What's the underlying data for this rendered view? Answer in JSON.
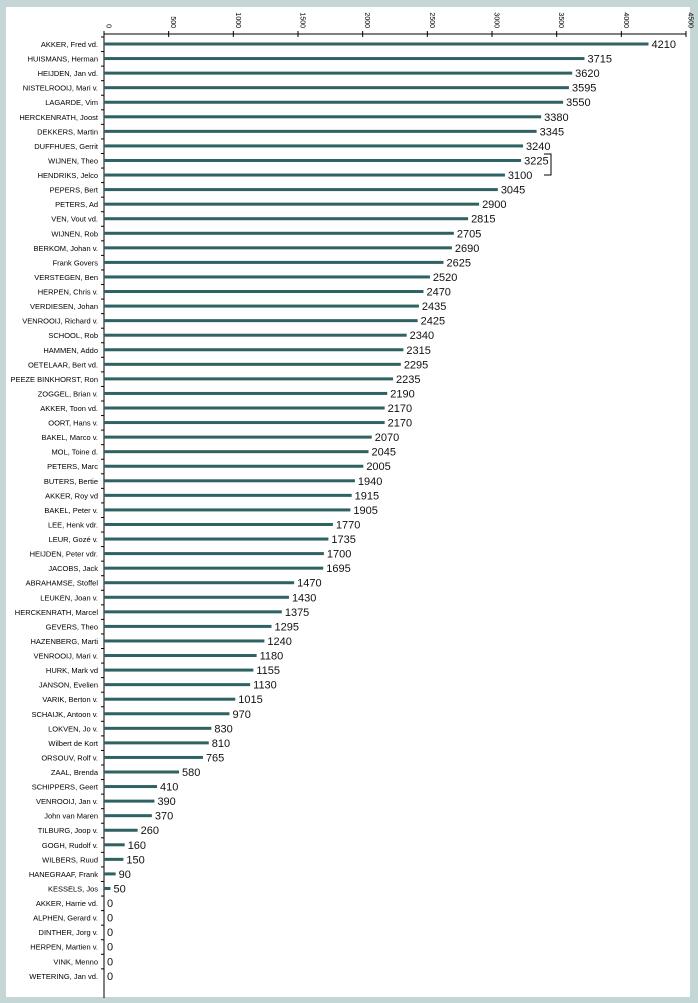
{
  "chart_data": {
    "type": "bar",
    "orientation": "horizontal",
    "title": "",
    "xlabel": "",
    "ylabel": "",
    "xlim": [
      0,
      4500
    ],
    "xticks": [
      0,
      500,
      1000,
      1500,
      2000,
      2500,
      3000,
      3500,
      4000,
      4500
    ],
    "bar_color": "#2f6262",
    "categories": [
      "AKKER, Fred vd.",
      "HUISMANS, Herman",
      "HEIJDEN, Jan vd.",
      "NISTELROOIJ, Mari v.",
      "LAGARDE, Vim",
      "HERCKENRATH, Joost",
      "DEKKERS, Martin",
      "DUFFHUES, Gerrit",
      "WIJNEN, Theo",
      "HENDRIKS, Jelco",
      "PEPERS, Bert",
      "PETERS, Ad",
      "VEN, Vout vd.",
      "WIJNEN, Rob",
      "BERKOM, Johan v.",
      "Frank Govers",
      "VERSTEGEN, Ben",
      "HERPEN, Chris v.",
      "VERDIESEN, Johan",
      "VENROOIJ, Richard v.",
      "SCHOOL, Rob",
      "HAMMEN, Addo",
      "OETELAAR, Bert vd.",
      "PEEZE BINKHORST, Ron",
      "ZOGGEL, Brian v.",
      "AKKER, Toon vd.",
      "OORT, Hans v.",
      "BAKEL, Marco v.",
      "MOL, Toine d.",
      "PETERS, Marc",
      "BUTERS, Bertie",
      "AKKER, Roy vd",
      "BAKEL, Peter v.",
      "LEE, Henk vdr.",
      "LEUR, Gozé v.",
      "HEIJDEN, Peter vdr.",
      "JACOBS, Jack",
      "ABRAHAMSE, Stoffel",
      "LEUKEN, Joan v.",
      "HERCKENRATH, Marcel",
      "GEVERS, Theo",
      "HAZENBERG, Marti",
      "VENROOIJ, Mari v.",
      "HURK, Mark vd",
      "JANSON, Evelien",
      "VARIK, Berton v.",
      "SCHAIJK, Antoon v.",
      "LOKVEN, Jo v.",
      "Wilbert de Kort",
      "ORSOUV, Rolf v.",
      "ZAAL, Brenda",
      "SCHIPPERS, Geert",
      "VENROOIJ, Jan v.",
      "John van Maren",
      "TILBURG, Joop v.",
      "GOGH, Rudolf v.",
      "WILBERS, Ruud",
      "HANEGRAAF, Frank",
      "KESSELS, Jos",
      "AKKER, Harrie vd.",
      "ALPHEN, Gerard v.",
      "DINTHER, Jorg v.",
      "HERPEN, Martien v.",
      "VINK, Menno",
      "WETERING, Jan vd."
    ],
    "values": [
      4210,
      3715,
      3620,
      3595,
      3550,
      3380,
      3345,
      3240,
      3225,
      3100,
      3045,
      2900,
      2815,
      2705,
      2690,
      2625,
      2520,
      2470,
      2435,
      2425,
      2340,
      2315,
      2295,
      2235,
      2190,
      2170,
      2170,
      2070,
      2045,
      2005,
      1940,
      1915,
      1905,
      1770,
      1735,
      1700,
      1695,
      1470,
      1430,
      1375,
      1295,
      1240,
      1180,
      1155,
      1130,
      1015,
      970,
      830,
      810,
      765,
      580,
      410,
      390,
      370,
      260,
      160,
      150,
      90,
      50,
      0,
      0,
      0,
      0,
      0,
      0
    ]
  }
}
